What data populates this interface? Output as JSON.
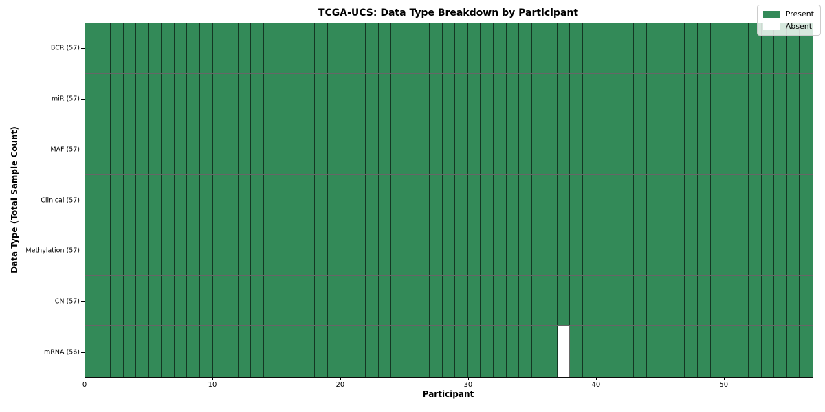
{
  "figure": {
    "title": "TCGA-UCS: Data Type Breakdown by Participant",
    "xlabel": "Participant",
    "ylabel": "Data Type (Total Sample Count)"
  },
  "legend": {
    "items": [
      {
        "name": "present",
        "label": "Present",
        "color": "#338a58"
      },
      {
        "name": "absent",
        "label": "Absent",
        "color": "#ffffff"
      }
    ]
  },
  "chart_data": {
    "type": "heatmap",
    "title": "TCGA-UCS: Data Type Breakdown by Participant",
    "xlabel": "Participant",
    "ylabel": "Data Type (Total Sample Count)",
    "n_participants": 57,
    "xlim": [
      0,
      57
    ],
    "x_ticks": [
      0,
      10,
      20,
      30,
      40,
      50
    ],
    "rows": [
      {
        "label": "BCR (57)",
        "data_type": "BCR",
        "present_count": 57,
        "absent_participants": []
      },
      {
        "label": "miR (57)",
        "data_type": "miR",
        "present_count": 57,
        "absent_participants": []
      },
      {
        "label": "MAF (57)",
        "data_type": "MAF",
        "present_count": 57,
        "absent_participants": []
      },
      {
        "label": "Clinical (57)",
        "data_type": "Clinical",
        "present_count": 57,
        "absent_participants": []
      },
      {
        "label": "Methylation (57)",
        "data_type": "Methylation",
        "present_count": 57,
        "absent_participants": []
      },
      {
        "label": "CN (57)",
        "data_type": "CN",
        "present_count": 57,
        "absent_participants": []
      },
      {
        "label": "mRNA (56)",
        "data_type": "mRNA",
        "present_count": 56,
        "absent_participants": [
          37
        ]
      }
    ],
    "colors": {
      "present": "#338a58",
      "absent": "#ffffff",
      "cell_edge": "rgba(0,0,0,0.6)"
    },
    "legend_entries": [
      "Present",
      "Absent"
    ],
    "legend_position": "upper right",
    "grid": "cell-borders"
  }
}
